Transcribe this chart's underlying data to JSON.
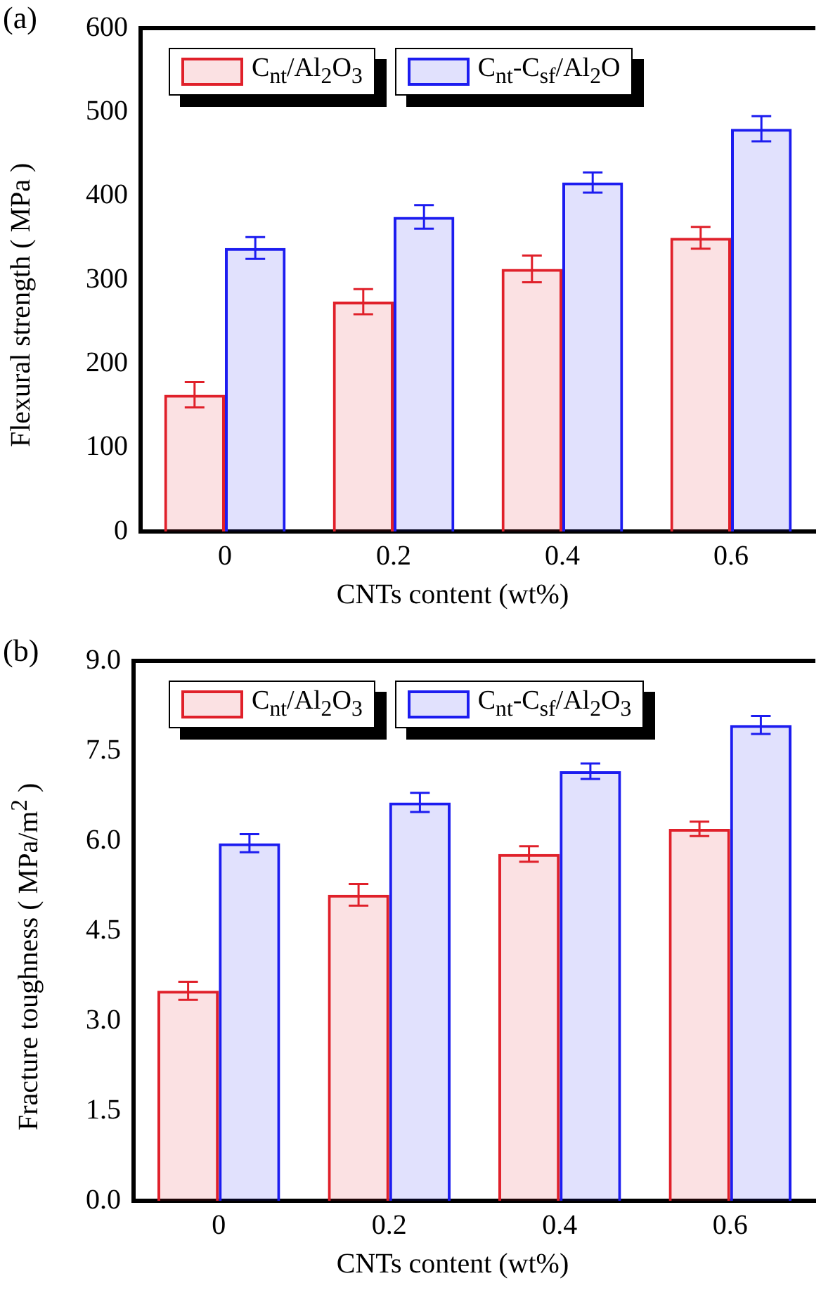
{
  "chart_data": [
    {
      "type": "bar",
      "annotations": [
        "(a)"
      ],
      "xlabel": "CNTs content (wt%)",
      "ylabel": "Flexural strength ( MPa )",
      "categories": [
        "0",
        "0.2",
        "0.4",
        "0.6"
      ],
      "ylim": [
        0,
        600
      ],
      "yticks": [
        0,
        100,
        200,
        300,
        400,
        500,
        600
      ],
      "grid": false,
      "legend": "top left",
      "series": [
        {
          "name": "C$_{nt}$/Al$_{2}$O$_{3}$",
          "color": "#e0202a",
          "values": [
            163,
            274,
            313,
            350
          ],
          "errors": [
            15,
            15,
            16,
            13
          ]
        },
        {
          "name": "C$_{nt}$-C$_{sf}$/Al$_{2}$O",
          "color": "#1c1cf0",
          "values": [
            338,
            375,
            416,
            480
          ],
          "errors": [
            13,
            14,
            12,
            15
          ]
        }
      ]
    },
    {
      "type": "bar",
      "annotations": [
        "(b)"
      ],
      "xlabel": "CNTs content (wt%)",
      "ylabel": "Fracture toughness ( MPa/m$^{2}$ )",
      "categories": [
        "0",
        "0.2",
        "0.4",
        "0.6"
      ],
      "ylim": [
        0,
        9
      ],
      "yticks": [
        {
          "value": 0,
          "label": "0.0"
        },
        {
          "value": 1.5,
          "label": "1.5"
        },
        {
          "value": 3,
          "label": "3.0"
        },
        {
          "value": 4.5,
          "label": "4.5"
        },
        {
          "value": 6,
          "label": "6.0"
        },
        {
          "value": 7.5,
          "label": "7.5"
        },
        {
          "value": 9,
          "label": "9.0"
        }
      ],
      "grid": false,
      "legend": "top left",
      "series": [
        {
          "name": "C$_{nt}$/Al$_{2}$O$_{3}$",
          "color": "#e0202a",
          "values": [
            3.5,
            5.1,
            5.78,
            6.2
          ],
          "errors": [
            0.15,
            0.18,
            0.13,
            0.12
          ]
        },
        {
          "name": "C$_{nt}$-C$_{sf}$/Al$_{2}$O$_{3}$",
          "color": "#1c1cf0",
          "values": [
            5.96,
            6.64,
            7.16,
            7.93
          ],
          "errors": [
            0.15,
            0.16,
            0.13,
            0.15
          ]
        }
      ]
    }
  ]
}
